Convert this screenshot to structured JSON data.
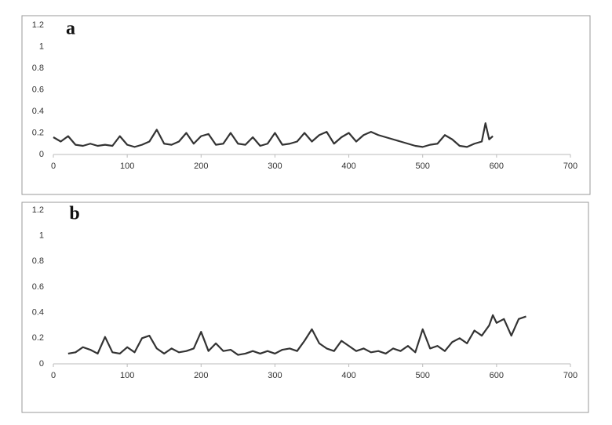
{
  "chart_data": [
    {
      "type": "line",
      "label": "a",
      "color": "#333333",
      "xlim": [
        0,
        700
      ],
      "xticks": [
        0,
        100,
        200,
        300,
        400,
        500,
        600,
        700
      ],
      "ylim": [
        0,
        1.2
      ],
      "yticks": [
        0,
        0.2,
        0.4,
        0.6,
        0.8,
        1,
        1.2
      ],
      "x": [
        0,
        10,
        20,
        30,
        40,
        50,
        60,
        70,
        80,
        90,
        100,
        110,
        120,
        130,
        140,
        150,
        160,
        170,
        180,
        190,
        200,
        210,
        220,
        230,
        240,
        250,
        260,
        270,
        280,
        290,
        300,
        310,
        320,
        330,
        340,
        350,
        360,
        370,
        380,
        390,
        400,
        410,
        420,
        430,
        440,
        450,
        460,
        470,
        480,
        490,
        500,
        510,
        520,
        530,
        540,
        550,
        560,
        570,
        580,
        585,
        590,
        595
      ],
      "values": [
        0.16,
        0.12,
        0.17,
        0.09,
        0.08,
        0.1,
        0.08,
        0.09,
        0.08,
        0.17,
        0.09,
        0.07,
        0.09,
        0.12,
        0.23,
        0.1,
        0.09,
        0.12,
        0.2,
        0.1,
        0.17,
        0.19,
        0.09,
        0.1,
        0.2,
        0.1,
        0.09,
        0.16,
        0.08,
        0.1,
        0.2,
        0.09,
        0.1,
        0.12,
        0.2,
        0.12,
        0.18,
        0.21,
        0.1,
        0.16,
        0.2,
        0.12,
        0.18,
        0.21,
        0.18,
        0.16,
        0.14,
        0.12,
        0.1,
        0.08,
        0.07,
        0.09,
        0.1,
        0.18,
        0.14,
        0.08,
        0.07,
        0.1,
        0.12,
        0.29,
        0.14,
        0.17
      ]
    },
    {
      "type": "line",
      "label": "b",
      "color": "#333333",
      "xlim": [
        0,
        700
      ],
      "xticks": [
        0,
        100,
        200,
        300,
        400,
        500,
        600,
        700
      ],
      "ylim": [
        0,
        1.2
      ],
      "yticks": [
        0,
        0.2,
        0.4,
        0.6,
        0.8,
        1,
        1.2
      ],
      "x": [
        20,
        30,
        40,
        50,
        60,
        70,
        80,
        90,
        100,
        110,
        120,
        130,
        140,
        150,
        160,
        170,
        180,
        190,
        200,
        210,
        220,
        230,
        240,
        250,
        260,
        270,
        280,
        290,
        300,
        310,
        320,
        330,
        340,
        350,
        360,
        370,
        380,
        390,
        400,
        410,
        420,
        430,
        440,
        450,
        460,
        470,
        480,
        490,
        500,
        510,
        520,
        530,
        540,
        550,
        560,
        570,
        580,
        590,
        595,
        600,
        610,
        620,
        630,
        640
      ],
      "values": [
        0.08,
        0.09,
        0.13,
        0.11,
        0.08,
        0.21,
        0.09,
        0.08,
        0.13,
        0.09,
        0.2,
        0.22,
        0.12,
        0.08,
        0.12,
        0.09,
        0.1,
        0.12,
        0.25,
        0.1,
        0.16,
        0.1,
        0.11,
        0.07,
        0.08,
        0.1,
        0.08,
        0.1,
        0.08,
        0.11,
        0.12,
        0.1,
        0.18,
        0.27,
        0.16,
        0.12,
        0.1,
        0.18,
        0.14,
        0.1,
        0.12,
        0.09,
        0.1,
        0.08,
        0.12,
        0.1,
        0.14,
        0.09,
        0.27,
        0.12,
        0.14,
        0.1,
        0.17,
        0.2,
        0.16,
        0.26,
        0.22,
        0.3,
        0.38,
        0.32,
        0.35,
        0.22,
        0.35,
        0.37
      ]
    }
  ]
}
